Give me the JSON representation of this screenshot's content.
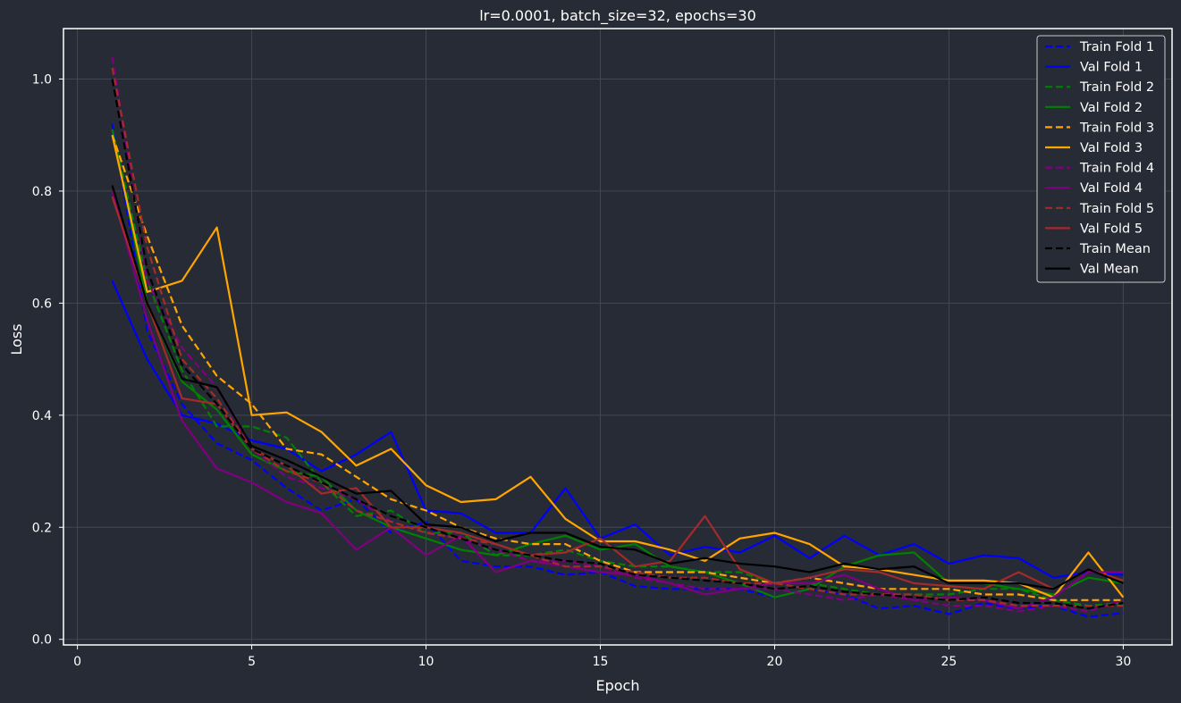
{
  "chart_data": {
    "type": "line",
    "title": "lr=0.0001, batch_size=32, epochs=30",
    "xlabel": "Epoch",
    "ylabel": "Loss",
    "xlim": [
      -0.4,
      31.4
    ],
    "ylim": [
      -0.01,
      1.09
    ],
    "xticks": [
      0,
      5,
      10,
      15,
      20,
      25,
      30
    ],
    "yticks": [
      0.0,
      0.2,
      0.4,
      0.6,
      0.8,
      1.0
    ],
    "ytick_labels": [
      "0.0",
      "0.2",
      "0.4",
      "0.6",
      "0.8",
      "1.0"
    ],
    "grid": true,
    "legend_position": "top-right",
    "x": [
      1,
      2,
      3,
      4,
      5,
      6,
      7,
      8,
      9,
      10,
      11,
      12,
      13,
      14,
      15,
      16,
      17,
      18,
      19,
      20,
      21,
      22,
      23,
      24,
      25,
      26,
      27,
      28,
      29,
      30
    ],
    "series": [
      {
        "name": "Train Fold 1",
        "color": "#0000ff",
        "dash": true,
        "values": [
          0.92,
          0.55,
          0.42,
          0.35,
          0.32,
          0.27,
          0.23,
          0.25,
          0.19,
          0.21,
          0.14,
          0.13,
          0.13,
          0.115,
          0.12,
          0.095,
          0.09,
          0.09,
          0.09,
          0.075,
          0.09,
          0.08,
          0.055,
          0.06,
          0.045,
          0.065,
          0.055,
          0.06,
          0.04,
          0.047
        ]
      },
      {
        "name": "Val Fold 1",
        "color": "#0000ff",
        "dash": false,
        "values": [
          0.64,
          0.5,
          0.4,
          0.385,
          0.355,
          0.34,
          0.3,
          0.33,
          0.37,
          0.23,
          0.225,
          0.19,
          0.19,
          0.27,
          0.18,
          0.205,
          0.15,
          0.165,
          0.155,
          0.185,
          0.145,
          0.185,
          0.15,
          0.17,
          0.135,
          0.15,
          0.145,
          0.11,
          0.12,
          0.115
        ]
      },
      {
        "name": "Train Fold 2",
        "color": "#008000",
        "dash": true,
        "values": [
          0.91,
          0.64,
          0.48,
          0.38,
          0.38,
          0.36,
          0.28,
          0.22,
          0.23,
          0.19,
          0.19,
          0.15,
          0.15,
          0.16,
          0.14,
          0.13,
          0.13,
          0.12,
          0.12,
          0.1,
          0.1,
          0.09,
          0.08,
          0.08,
          0.08,
          0.09,
          0.09,
          0.07,
          0.06,
          0.065
        ]
      },
      {
        "name": "Val Fold 2",
        "color": "#008000",
        "dash": false,
        "values": [
          0.91,
          0.6,
          0.46,
          0.41,
          0.33,
          0.3,
          0.29,
          0.23,
          0.2,
          0.18,
          0.16,
          0.15,
          0.17,
          0.185,
          0.16,
          0.17,
          0.13,
          0.12,
          0.1,
          0.075,
          0.09,
          0.13,
          0.15,
          0.155,
          0.1,
          0.1,
          0.09,
          0.08,
          0.11,
          0.1
        ]
      },
      {
        "name": "Train Fold 3",
        "color": "#ffa500",
        "dash": true,
        "values": [
          0.9,
          0.72,
          0.56,
          0.47,
          0.42,
          0.34,
          0.33,
          0.29,
          0.25,
          0.23,
          0.2,
          0.18,
          0.17,
          0.17,
          0.14,
          0.12,
          0.12,
          0.12,
          0.11,
          0.1,
          0.11,
          0.1,
          0.09,
          0.09,
          0.09,
          0.08,
          0.08,
          0.07,
          0.07,
          0.07
        ]
      },
      {
        "name": "Val Fold 3",
        "color": "#ffa500",
        "dash": false,
        "values": [
          0.9,
          0.62,
          0.64,
          0.735,
          0.4,
          0.405,
          0.37,
          0.31,
          0.34,
          0.275,
          0.245,
          0.25,
          0.29,
          0.215,
          0.175,
          0.175,
          0.16,
          0.14,
          0.18,
          0.19,
          0.17,
          0.13,
          0.125,
          0.115,
          0.105,
          0.105,
          0.1,
          0.075,
          0.155,
          0.075
        ]
      },
      {
        "name": "Train Fold 4",
        "color": "#800080",
        "dash": true,
        "values": [
          1.04,
          0.64,
          0.52,
          0.45,
          0.34,
          0.29,
          0.27,
          0.25,
          0.21,
          0.19,
          0.18,
          0.16,
          0.14,
          0.14,
          0.13,
          0.11,
          0.1,
          0.09,
          0.09,
          0.09,
          0.08,
          0.07,
          0.08,
          0.07,
          0.06,
          0.06,
          0.05,
          0.06,
          0.05,
          0.07
        ]
      },
      {
        "name": "Val Fold 4",
        "color": "#800080",
        "dash": false,
        "values": [
          0.8,
          0.57,
          0.39,
          0.305,
          0.28,
          0.245,
          0.225,
          0.16,
          0.2,
          0.15,
          0.185,
          0.12,
          0.14,
          0.13,
          0.12,
          0.115,
          0.1,
          0.08,
          0.09,
          0.1,
          0.1,
          0.115,
          0.09,
          0.07,
          0.075,
          0.07,
          0.055,
          0.075,
          0.12,
          0.12
        ]
      },
      {
        "name": "Train Fold 5",
        "color": "#a52a2a",
        "dash": true,
        "values": [
          1.02,
          0.7,
          0.5,
          0.43,
          0.34,
          0.3,
          0.28,
          0.23,
          0.21,
          0.19,
          0.18,
          0.17,
          0.15,
          0.13,
          0.13,
          0.12,
          0.11,
          0.11,
          0.1,
          0.1,
          0.09,
          0.08,
          0.08,
          0.08,
          0.07,
          0.07,
          0.06,
          0.06,
          0.06,
          0.06
        ]
      },
      {
        "name": "Val Fold 5",
        "color": "#a52a2a",
        "dash": false,
        "values": [
          0.79,
          0.6,
          0.43,
          0.42,
          0.34,
          0.31,
          0.26,
          0.27,
          0.2,
          0.2,
          0.19,
          0.17,
          0.15,
          0.155,
          0.18,
          0.13,
          0.14,
          0.22,
          0.125,
          0.1,
          0.11,
          0.125,
          0.12,
          0.1,
          0.095,
          0.09,
          0.12,
          0.09,
          0.125,
          0.105
        ]
      },
      {
        "name": "Train Mean",
        "color": "#000000",
        "dash": true,
        "values": [
          1.0,
          0.66,
          0.49,
          0.42,
          0.34,
          0.31,
          0.28,
          0.25,
          0.22,
          0.2,
          0.18,
          0.16,
          0.15,
          0.14,
          0.135,
          0.115,
          0.11,
          0.105,
          0.1,
          0.09,
          0.095,
          0.085,
          0.08,
          0.075,
          0.07,
          0.075,
          0.065,
          0.065,
          0.055,
          0.065
        ]
      },
      {
        "name": "Val Mean",
        "color": "#000000",
        "dash": false,
        "values": [
          0.81,
          0.6,
          0.465,
          0.45,
          0.345,
          0.32,
          0.29,
          0.26,
          0.265,
          0.205,
          0.2,
          0.175,
          0.19,
          0.19,
          0.165,
          0.16,
          0.135,
          0.145,
          0.135,
          0.13,
          0.12,
          0.135,
          0.125,
          0.13,
          0.1,
          0.1,
          0.1,
          0.09,
          0.125,
          0.1
        ]
      }
    ]
  }
}
